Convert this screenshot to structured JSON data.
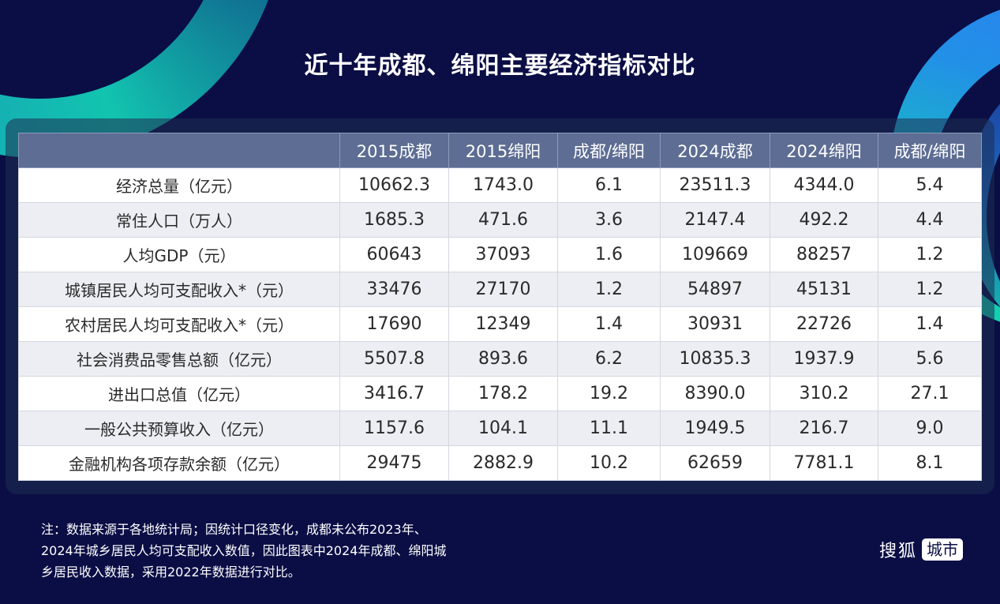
{
  "title": "近十年成都、绵阳主要经济指标对比",
  "table": {
    "headers": [
      "",
      "2015成都",
      "2015绵阳",
      "成都/绵阳",
      "2024成都",
      "2024绵阳",
      "成都/绵阳"
    ],
    "rows": [
      [
        "经济总量（亿元）",
        "10662.3",
        "1743.0",
        "6.1",
        "23511.3",
        "4344.0",
        "5.4"
      ],
      [
        "常住人口（万人）",
        "1685.3",
        "471.6",
        "3.6",
        "2147.4",
        "492.2",
        "4.4"
      ],
      [
        "人均GDP（元）",
        "60643",
        "37093",
        "1.6",
        "109669",
        "88257",
        "1.2"
      ],
      [
        "城镇居民人均可支配收入*（元）",
        "33476",
        "27170",
        "1.2",
        "54897",
        "45131",
        "1.2"
      ],
      [
        "农村居民人均可支配收入*（元）",
        "17690",
        "12349",
        "1.4",
        "30931",
        "22726",
        "1.4"
      ],
      [
        "社会消费品零售总额（亿元）",
        "5507.8",
        "893.6",
        "6.2",
        "10835.3",
        "1937.9",
        "5.6"
      ],
      [
        "进出口总值（亿元）",
        "3416.7",
        "178.2",
        "19.2",
        "8390.0",
        "310.2",
        "27.1"
      ],
      [
        "一般公共预算收入（亿元）",
        "1157.6",
        "104.1",
        "11.1",
        "1949.5",
        "216.7",
        "9.0"
      ],
      [
        "金融机构各项存款余额（亿元）",
        "29475",
        "2882.9",
        "10.2",
        "62659",
        "7781.1",
        "8.1"
      ]
    ]
  },
  "note": {
    "lines": [
      "注：数据来源于各地统计局；因统计口径变化，成都未公布2023年、",
      "2024年城乡居民人均可支配收入数值，因此图表中2024年成都、绵阳城",
      "乡居民收入数据，采用2022年数据进行对比。"
    ]
  },
  "logo": {
    "main": "搜狐",
    "badge": "城市"
  },
  "colors": {
    "background": "#0b0e45",
    "header_bg": "#5d6d93",
    "row_alt": "#eceef3",
    "accent_teal": "#12c4b0",
    "accent_blue": "#2d7cf5"
  }
}
